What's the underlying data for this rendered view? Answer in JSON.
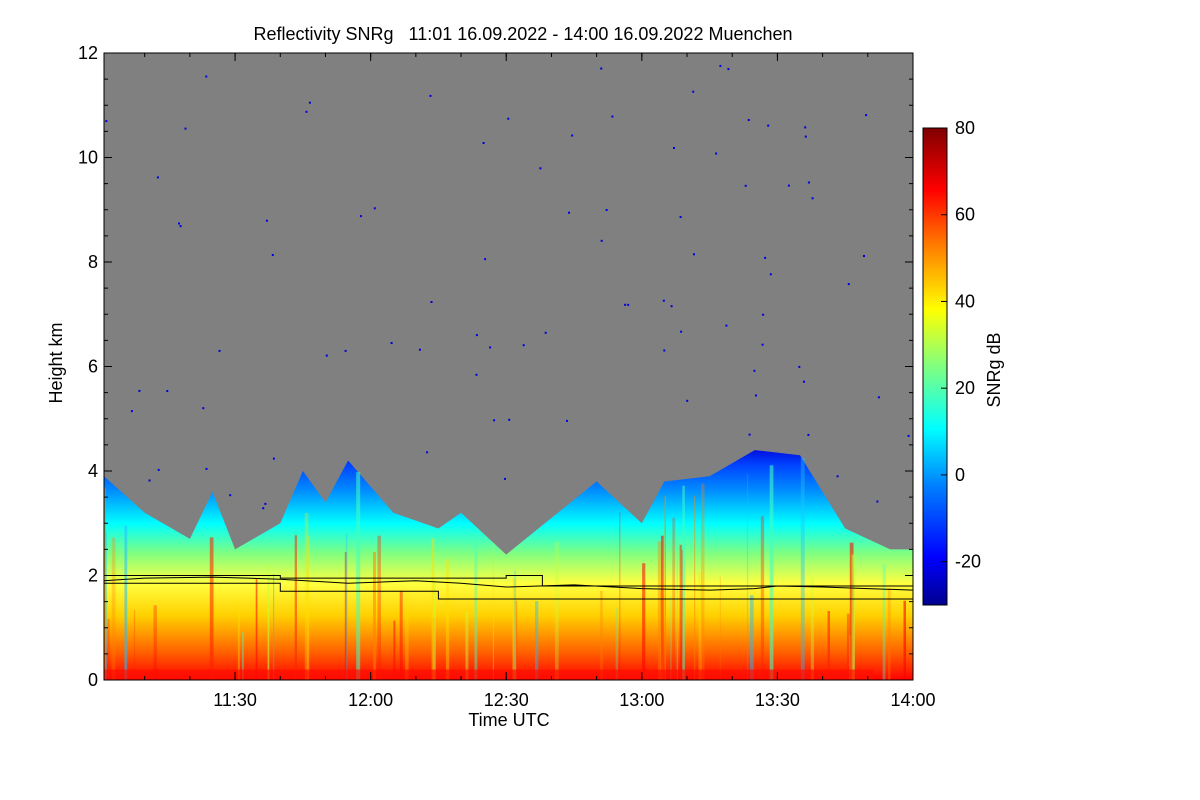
{
  "chart_data": {
    "type": "heatmap",
    "title": "Reflectivity SNRg   11:01 16.09.2022 - 14:00 16.09.2022 Muenchen",
    "xlabel": "Time UTC",
    "ylabel": "Height km",
    "xlim": [
      "11:01",
      "14:00"
    ],
    "ylim": [
      0,
      12
    ],
    "x_ticks": [
      "11:30",
      "12:00",
      "12:30",
      "13:00",
      "13:30",
      "14:00"
    ],
    "y_ticks": [
      "0",
      "2",
      "4",
      "6",
      "8",
      "10",
      "12"
    ],
    "colorbar": {
      "label": "SNRg dB",
      "range": [
        -30,
        80
      ],
      "ticks": [
        "-20",
        "0",
        "20",
        "40",
        "60",
        "80"
      ]
    },
    "background_color": "#808080",
    "colormap": [
      "#00008f",
      "#0000ff",
      "#0080ff",
      "#00ffff",
      "#80ff80",
      "#ffff00",
      "#ff8000",
      "#ff0000",
      "#800000"
    ],
    "echo_top_km": [
      {
        "t": "11:01",
        "h": 3.9
      },
      {
        "t": "11:10",
        "h": 3.2
      },
      {
        "t": "11:20",
        "h": 2.7
      },
      {
        "t": "11:25",
        "h": 3.6
      },
      {
        "t": "11:30",
        "h": 2.5
      },
      {
        "t": "11:40",
        "h": 3.0
      },
      {
        "t": "11:45",
        "h": 4.0
      },
      {
        "t": "11:50",
        "h": 3.4
      },
      {
        "t": "11:55",
        "h": 4.2
      },
      {
        "t": "12:05",
        "h": 3.2
      },
      {
        "t": "12:15",
        "h": 2.9
      },
      {
        "t": "12:20",
        "h": 3.2
      },
      {
        "t": "12:30",
        "h": 2.4
      },
      {
        "t": "12:40",
        "h": 3.1
      },
      {
        "t": "12:50",
        "h": 3.8
      },
      {
        "t": "13:00",
        "h": 3.0
      },
      {
        "t": "13:05",
        "h": 3.8
      },
      {
        "t": "13:15",
        "h": 3.9
      },
      {
        "t": "13:25",
        "h": 4.4
      },
      {
        "t": "13:35",
        "h": 4.3
      },
      {
        "t": "13:45",
        "h": 2.9
      },
      {
        "t": "13:55",
        "h": 2.5
      },
      {
        "t": "14:00",
        "h": 2.5
      }
    ],
    "series": [
      {
        "values": [
          {
            "t": "11:01",
            "h": 1.9
          },
          {
            "t": "11:10",
            "h": 1.95
          },
          {
            "t": "11:25",
            "h": 1.97
          },
          {
            "t": "11:40",
            "h": 1.93
          },
          {
            "t": "11:55",
            "h": 1.85
          },
          {
            "t": "12:10",
            "h": 1.9
          },
          {
            "t": "12:20",
            "h": 1.85
          },
          {
            "t": "12:30",
            "h": 1.78
          },
          {
            "t": "12:45",
            "h": 1.82
          },
          {
            "t": "13:00",
            "h": 1.75
          },
          {
            "t": "13:15",
            "h": 1.72
          },
          {
            "t": "13:25",
            "h": 1.75
          },
          {
            "t": "13:30",
            "h": 1.8
          },
          {
            "t": "13:40",
            "h": 1.78
          },
          {
            "t": "13:50",
            "h": 1.75
          },
          {
            "t": "14:00",
            "h": 1.72
          }
        ]
      },
      {
        "values": [
          {
            "t": "11:01",
            "h": 2.0
          },
          {
            "t": "11:40",
            "h": 2.0
          },
          {
            "t": "11:40",
            "h": 1.95
          },
          {
            "t": "12:30",
            "h": 1.95
          },
          {
            "t": "12:30",
            "h": 2.0
          },
          {
            "t": "12:38",
            "h": 2.0
          },
          {
            "t": "12:38",
            "h": 1.8
          },
          {
            "t": "14:00",
            "h": 1.8
          }
        ]
      },
      {
        "values": [
          {
            "t": "11:01",
            "h": 1.85
          },
          {
            "t": "11:40",
            "h": 1.85
          },
          {
            "t": "11:40",
            "h": 1.7
          },
          {
            "t": "12:15",
            "h": 1.7
          },
          {
            "t": "12:15",
            "h": 1.55
          },
          {
            "t": "14:00",
            "h": 1.55
          }
        ]
      }
    ]
  }
}
